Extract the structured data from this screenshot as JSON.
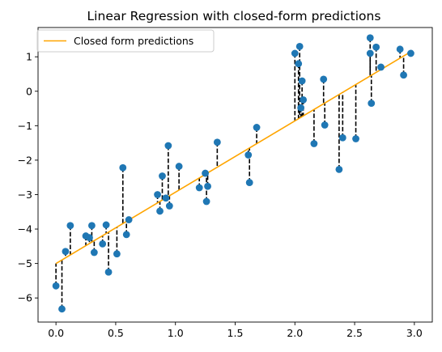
{
  "chart_data": {
    "type": "scatter",
    "title": "Linear Regression with closed-form predictions",
    "xlabel": "",
    "ylabel": "",
    "xlim": [
      -0.15,
      3.15
    ],
    "ylim": [
      -6.7,
      1.85
    ],
    "x_ticks": [
      "0.0",
      "0.5",
      "1.0",
      "1.5",
      "2.0",
      "2.5",
      "3.0"
    ],
    "x_tick_values": [
      0.0,
      0.5,
      1.0,
      1.5,
      2.0,
      2.5,
      3.0
    ],
    "y_ticks": [
      "−6",
      "−5",
      "−4",
      "−3",
      "−2",
      "−1",
      "0",
      "1"
    ],
    "y_tick_values": [
      -6,
      -5,
      -4,
      -3,
      -2,
      -1,
      0,
      1
    ],
    "grid": false,
    "legend": {
      "placement": "top-left",
      "entries": [
        "Closed form predictions"
      ]
    },
    "regression_line": {
      "intercept": -5.0,
      "slope": 2.07,
      "color": "#ffa500"
    },
    "series": [
      {
        "color": "#1f77b4",
        "points": [
          [
            0.0,
            -5.65
          ],
          [
            0.05,
            -6.32
          ],
          [
            0.08,
            -4.65
          ],
          [
            0.12,
            -3.9
          ],
          [
            0.25,
            -4.2
          ],
          [
            0.28,
            -4.25
          ],
          [
            0.3,
            -3.9
          ],
          [
            0.32,
            -4.68
          ],
          [
            0.39,
            -4.43
          ],
          [
            0.42,
            -3.88
          ],
          [
            0.44,
            -5.25
          ],
          [
            0.51,
            -4.72
          ],
          [
            0.56,
            -2.22
          ],
          [
            0.59,
            -4.16
          ],
          [
            0.61,
            -3.73
          ],
          [
            0.85,
            -3.0
          ],
          [
            0.87,
            -3.48
          ],
          [
            0.89,
            -2.46
          ],
          [
            0.92,
            -3.1
          ],
          [
            0.94,
            -1.58
          ],
          [
            0.95,
            -3.33
          ],
          [
            1.03,
            -2.18
          ],
          [
            1.2,
            -2.8
          ],
          [
            1.25,
            -2.38
          ],
          [
            1.26,
            -3.2
          ],
          [
            1.27,
            -2.76
          ],
          [
            1.35,
            -1.48
          ],
          [
            1.61,
            -1.85
          ],
          [
            1.62,
            -2.65
          ],
          [
            1.68,
            -1.05
          ],
          [
            2.0,
            1.1
          ],
          [
            2.03,
            0.8
          ],
          [
            2.04,
            1.3
          ],
          [
            2.05,
            -0.48
          ],
          [
            2.06,
            0.3
          ],
          [
            2.07,
            -0.25
          ],
          [
            2.16,
            -1.52
          ],
          [
            2.24,
            0.35
          ],
          [
            2.25,
            -0.98
          ],
          [
            2.37,
            -2.27
          ],
          [
            2.4,
            -1.35
          ],
          [
            2.51,
            -1.38
          ],
          [
            2.63,
            1.55
          ],
          [
            2.63,
            1.1
          ],
          [
            2.64,
            -0.35
          ],
          [
            2.68,
            1.28
          ],
          [
            2.72,
            0.7
          ],
          [
            2.88,
            1.22
          ],
          [
            2.91,
            0.47
          ],
          [
            2.97,
            1.1
          ]
        ]
      }
    ]
  }
}
